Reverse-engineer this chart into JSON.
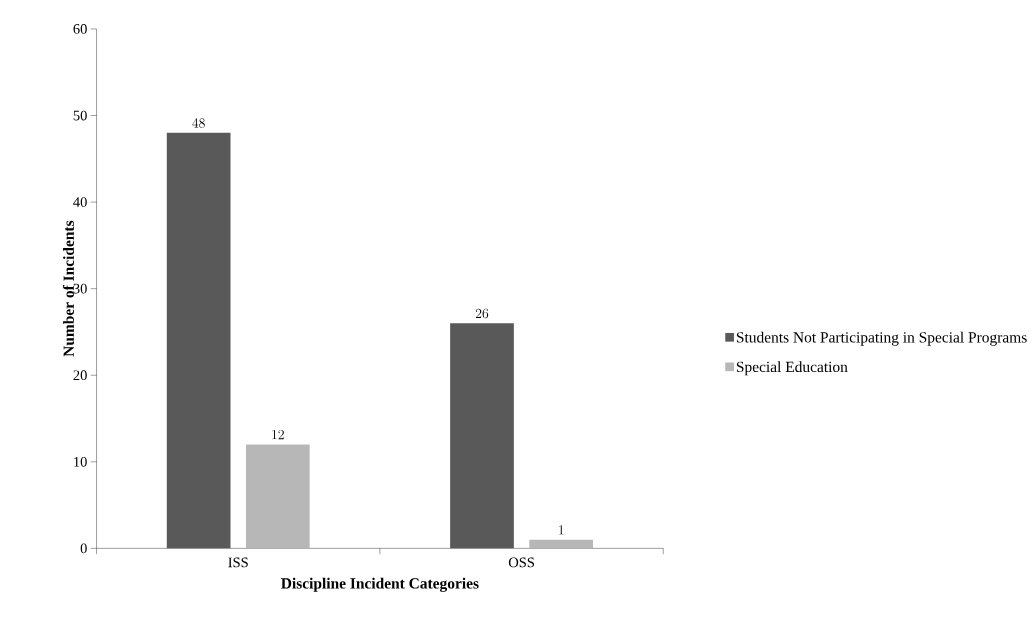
{
  "chart_data": {
    "type": "bar",
    "xlabel": "Discipline Incident Categories",
    "ylabel": "Number of Incidents",
    "categories": [
      "ISS",
      "OSS"
    ],
    "series": [
      {
        "name": "Students Not Participating in Special Programs",
        "color": "#595959",
        "values": [
          48,
          26
        ]
      },
      {
        "name": "Special Education",
        "color": "#b7b7b7",
        "values": [
          12,
          1
        ]
      }
    ],
    "ylim": [
      0,
      60
    ],
    "yticks": [
      0,
      10,
      20,
      30,
      40,
      50,
      60
    ],
    "grid": false,
    "legend": "right",
    "data_labels": true
  }
}
